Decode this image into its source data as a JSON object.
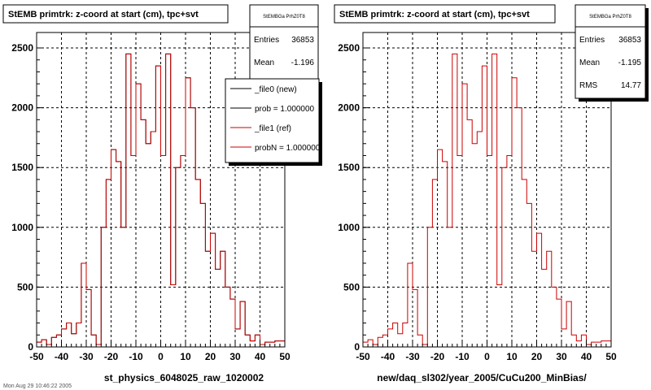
{
  "panels": [
    {
      "title": "StEMB primtrk: z-coord at start (cm), tpc+svt",
      "xlabel": "st_physics_6048025_raw_1020002",
      "stats": {
        "name": "StEMBGa PrhZ0T8",
        "rows": [
          {
            "label": "Entries",
            "value": "36853"
          },
          {
            "label": "Mean",
            "value": "-1.196"
          }
        ]
      },
      "legend": [
        {
          "label": "_file0 (new)",
          "color": "#000000"
        },
        {
          "label": "prob = 1.000000",
          "color": "#000000"
        },
        {
          "label": "_file1 (ref)",
          "color": "#cc0000"
        },
        {
          "label": "probN = 1.000000",
          "color": "#cc0000"
        }
      ]
    },
    {
      "title": "StEMB primtrk: z-coord at start (cm), tpc+svt",
      "xlabel": "new/daq_sl302/year_2005/CuCu200_MinBias/",
      "stats": {
        "name": "StEMBGa PrhZ0T8",
        "rows": [
          {
            "label": "Entries",
            "value": "36853"
          },
          {
            "label": "Mean",
            "value": "-1.195"
          },
          {
            "label": "RMS",
            "value": "14.77"
          }
        ]
      },
      "legend": []
    }
  ],
  "footer_text": "Mon Aug 29 10:46:22 2005",
  "chart_data": [
    {
      "type": "histogram",
      "title": "StEMB primtrk: z-coord at start (cm), tpc+svt",
      "xlabel": "st_physics_6048025_raw_1020002",
      "ylabel": "",
      "xlim": [
        -50,
        50
      ],
      "ylim": [
        0,
        2500
      ],
      "xticks": [
        -50,
        -40,
        -30,
        -20,
        -10,
        0,
        10,
        20,
        30,
        40,
        50
      ],
      "yticks": [
        0,
        500,
        1000,
        1500,
        2000,
        2500
      ],
      "grid": true,
      "bin_edges_start": -50,
      "bin_width": 2,
      "series": [
        {
          "name": "_file0 (new)",
          "color": "#000000",
          "values": [
            40,
            60,
            20,
            80,
            100,
            150,
            200,
            110,
            200,
            700,
            480,
            100,
            20,
            1000,
            1400,
            1650,
            1550,
            1000,
            2450,
            1600,
            2200,
            1900,
            1700,
            1800,
            2350,
            1600,
            2450,
            520,
            1500,
            1600,
            2250,
            2000,
            1400,
            1200,
            800,
            950,
            650,
            800,
            500,
            400,
            150,
            380,
            100,
            50,
            100,
            20,
            40,
            40,
            50,
            50
          ]
        },
        {
          "name": "_file1 (ref)",
          "color": "#cc0000",
          "values": [
            40,
            60,
            20,
            80,
            100,
            150,
            200,
            110,
            200,
            700,
            480,
            100,
            20,
            1000,
            1400,
            1650,
            1550,
            1000,
            2450,
            1600,
            2200,
            1900,
            1700,
            1800,
            2350,
            1600,
            2450,
            520,
            1500,
            1600,
            2250,
            2000,
            1400,
            1200,
            800,
            950,
            650,
            800,
            500,
            400,
            150,
            380,
            100,
            50,
            100,
            20,
            40,
            40,
            50,
            50
          ]
        }
      ]
    },
    {
      "type": "histogram",
      "title": "StEMB primtrk: z-coord at start (cm), tpc+svt",
      "xlabel": "new/daq_sl302/year_2005/CuCu200_MinBias/",
      "ylabel": "",
      "xlim": [
        -50,
        50
      ],
      "ylim": [
        0,
        2500
      ],
      "xticks": [
        -50,
        -40,
        -30,
        -20,
        -10,
        0,
        10,
        20,
        30,
        40,
        50
      ],
      "yticks": [
        0,
        500,
        1000,
        1500,
        2000,
        2500
      ],
      "grid": true,
      "bin_edges_start": -50,
      "bin_width": 2,
      "series": [
        {
          "name": "",
          "color": "#cc0000",
          "values": [
            40,
            60,
            20,
            80,
            100,
            150,
            200,
            110,
            200,
            700,
            480,
            100,
            20,
            1000,
            1400,
            1650,
            1550,
            1000,
            2450,
            1600,
            2200,
            1900,
            1700,
            1800,
            2350,
            1600,
            2450,
            520,
            1500,
            1600,
            2250,
            2000,
            1400,
            1200,
            800,
            950,
            650,
            800,
            500,
            400,
            150,
            380,
            100,
            50,
            100,
            20,
            40,
            40,
            50,
            50
          ]
        }
      ]
    }
  ]
}
